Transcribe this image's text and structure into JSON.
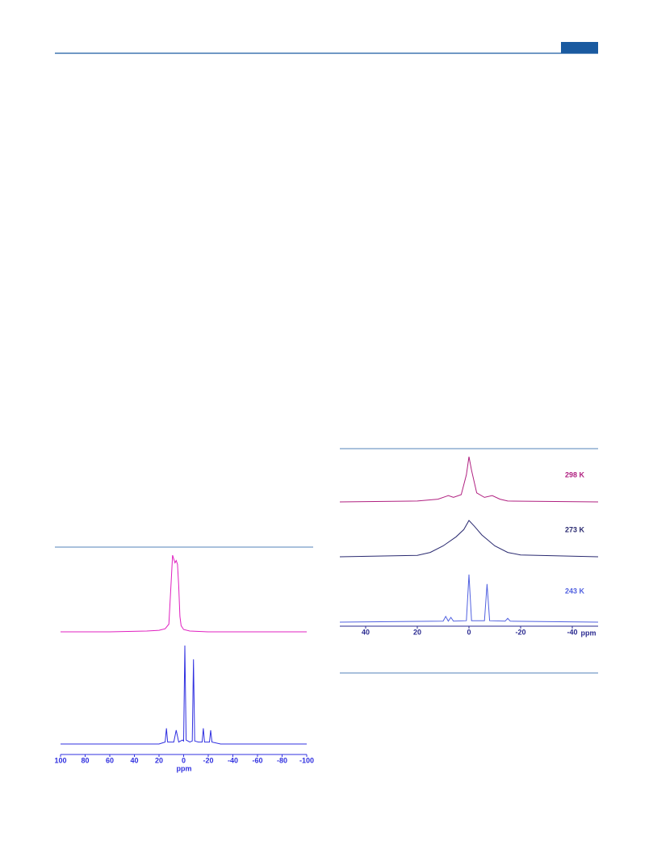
{
  "chart_data": [
    {
      "type": "line",
      "xlabel": "ppm",
      "xlim": [
        100,
        -100
      ],
      "xticks": [
        100,
        80,
        60,
        40,
        20,
        0,
        -20,
        -40,
        -60,
        -80,
        -100
      ],
      "series": [
        {
          "color": "#e020c0",
          "x": [
            100,
            60,
            30,
            20,
            15,
            12,
            10,
            9,
            8,
            7,
            6,
            5,
            4,
            3,
            2,
            0,
            -5,
            -20,
            -60,
            -100
          ],
          "values": [
            0,
            0,
            1,
            2,
            4,
            10,
            70,
            100,
            95,
            90,
            93,
            88,
            60,
            20,
            8,
            3,
            1,
            0,
            0,
            0
          ]
        },
        {
          "color": "#3030e0",
          "x": [
            100,
            20,
            15,
            14,
            13,
            8,
            6,
            4,
            1,
            0,
            -1,
            -2,
            -5,
            -7,
            -8,
            -9,
            -12,
            -15,
            -16,
            -17,
            -21,
            -22,
            -23,
            -30,
            -100
          ],
          "values": [
            0,
            0,
            2,
            16,
            2,
            2,
            14,
            2,
            4,
            3,
            100,
            4,
            2,
            3,
            86,
            3,
            2,
            2,
            16,
            2,
            2,
            14,
            2,
            0,
            0
          ]
        }
      ]
    },
    {
      "type": "line",
      "xlabel": "ppm",
      "xlim": [
        50,
        -50
      ],
      "xticks": [
        40,
        20,
        0,
        -20,
        -40
      ],
      "series": [
        {
          "name": "298 K",
          "color": "#b02080",
          "x": [
            50,
            20,
            12,
            9,
            8,
            6,
            3,
            1,
            0,
            -1,
            -3,
            -6,
            -9,
            -12,
            -15,
            -50
          ],
          "values": [
            0,
            2,
            6,
            12,
            14,
            10,
            16,
            60,
            100,
            70,
            20,
            10,
            14,
            6,
            2,
            0
          ]
        },
        {
          "name": "273 K",
          "color": "#2a2a70",
          "x": [
            50,
            20,
            15,
            10,
            5,
            2,
            0,
            -2,
            -5,
            -10,
            -15,
            -20,
            -50
          ],
          "values": [
            0,
            4,
            12,
            30,
            55,
            75,
            100,
            85,
            60,
            30,
            12,
            5,
            0
          ]
        },
        {
          "name": "243 K",
          "color": "#5060e0",
          "x": [
            50,
            10,
            9,
            8,
            7,
            6,
            1,
            0,
            -1,
            -6,
            -7,
            -8,
            -14,
            -15,
            -16,
            -50
          ],
          "values": [
            0,
            2,
            12,
            2,
            10,
            2,
            3,
            100,
            3,
            3,
            80,
            3,
            2,
            8,
            2,
            0
          ]
        }
      ]
    }
  ]
}
